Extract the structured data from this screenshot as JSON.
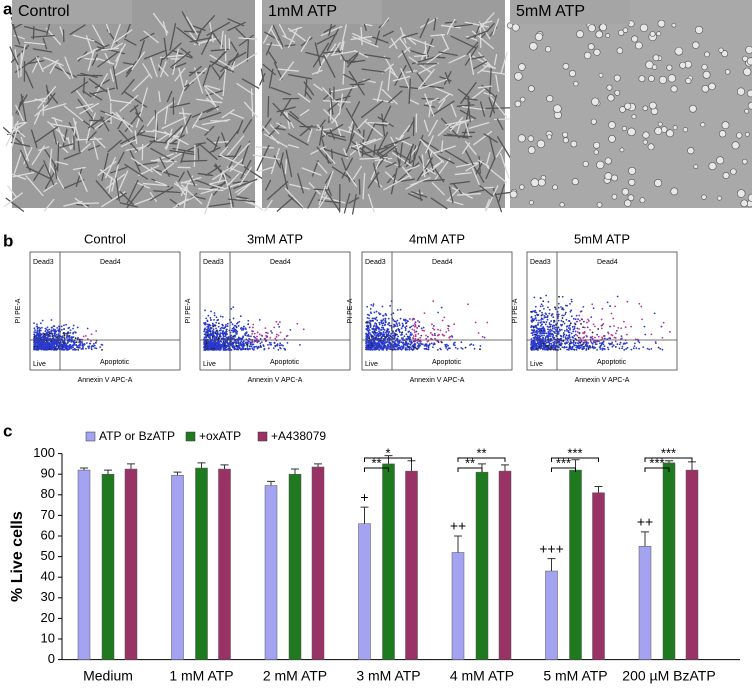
{
  "panel_a": {
    "label": "a",
    "images": [
      "Control",
      "1mM ATP",
      "5mM ATP"
    ]
  },
  "panel_b": {
    "label": "b",
    "plots": [
      "Control",
      "3mM ATP",
      "4mM ATP",
      "5mM ATP"
    ],
    "x_label": "Annexin V APC-A",
    "y_label": "PI PE-A",
    "quadrants": [
      "Dead3",
      "Dead4",
      "Live",
      "Apoptotic"
    ]
  },
  "chart_data": {
    "type": "bar",
    "panel_label": "c",
    "y_label": "% Live cells",
    "categories": [
      "Medium",
      "1 mM ATP",
      "2 mM ATP",
      "3 mM ATP",
      "4 mM ATP",
      "5 mM ATP",
      "200 µM BzATP"
    ],
    "series": [
      {
        "name": "ATP or BzATP",
        "color": "#a3a3f2",
        "values": [
          92,
          89.5,
          84.5,
          66,
          52,
          43,
          55
        ],
        "errors": [
          1,
          1.5,
          2,
          8,
          8,
          6,
          7
        ],
        "value_notes": [
          null,
          null,
          null,
          "+",
          "++",
          "+++",
          "++"
        ]
      },
      {
        "name": "+oxATP",
        "color": "#1f7a1f",
        "values": [
          90,
          93,
          90,
          95,
          91,
          92,
          95.5
        ],
        "errors": [
          2,
          2.5,
          2.5,
          4,
          4,
          5,
          1
        ]
      },
      {
        "name": "+A438079",
        "color": "#993366",
        "values": [
          92.5,
          92.5,
          93.5,
          91.5,
          91.5,
          81,
          92
        ],
        "errors": [
          2.5,
          2,
          1.5,
          5,
          3,
          3,
          4
        ]
      }
    ],
    "significance_vs_oxATP": [
      null,
      null,
      null,
      "**",
      "**",
      "***",
      "***"
    ],
    "significance_vs_A438079": [
      null,
      null,
      null,
      "*",
      "**",
      "***",
      "***"
    ],
    "ylim": [
      0,
      100
    ],
    "yticks": [
      0,
      10,
      20,
      30,
      40,
      50,
      60,
      70,
      80,
      90,
      100
    ]
  }
}
